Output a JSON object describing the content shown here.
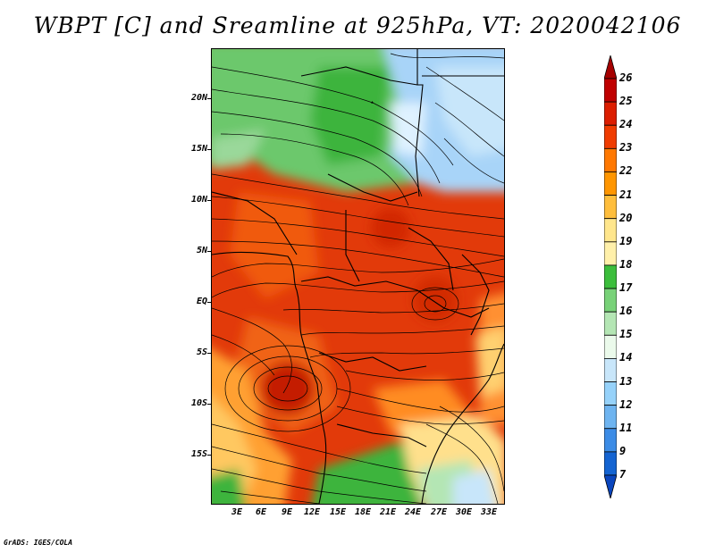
{
  "title": "WBPT [C] and Sreamline at 925hPa, VT: 2020042106",
  "footer": "GrADS: IGES/COLA",
  "lat_labels": [
    "20N",
    "15N",
    "10N",
    "5N",
    "EQ",
    "5S",
    "10S",
    "15S"
  ],
  "lon_labels": [
    "3E",
    "6E",
    "9E",
    "12E",
    "15E",
    "18E",
    "21E",
    "24E",
    "27E",
    "30E",
    "33E"
  ],
  "colorbar": {
    "levels": [
      "26",
      "25",
      "24",
      "23",
      "22",
      "21",
      "20",
      "19",
      "18",
      "17",
      "16",
      "15",
      "14",
      "13",
      "12",
      "11",
      "9",
      "7"
    ],
    "colors": [
      "#a50000",
      "#c00000",
      "#dc1e00",
      "#f03c00",
      "#ff7800",
      "#ff9600",
      "#ffbe3c",
      "#ffe68c",
      "#fff0aa",
      "#3cbe3c",
      "#78d278",
      "#b4e6b4",
      "#ebfaeb",
      "#c8e6fa",
      "#96d2fa",
      "#6eb4f0",
      "#3c8ce6",
      "#1464d2",
      "#0a46be"
    ]
  },
  "legend": {
    "quantity": "WBPT [C]",
    "pressure_level": "925hPa",
    "valid_time": "2020042106"
  }
}
